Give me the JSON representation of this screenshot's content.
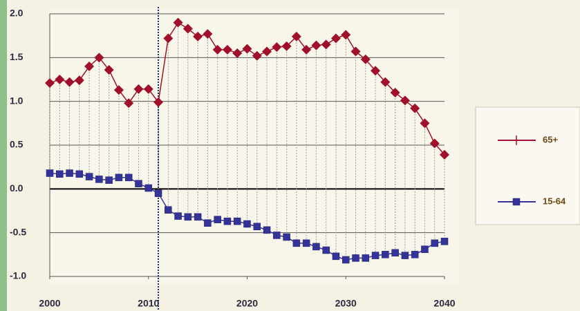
{
  "chart_data": {
    "type": "line",
    "x": [
      2000,
      2001,
      2002,
      2003,
      2004,
      2005,
      2006,
      2007,
      2008,
      2009,
      2010,
      2011,
      2012,
      2013,
      2014,
      2015,
      2016,
      2017,
      2018,
      2019,
      2020,
      2021,
      2022,
      2023,
      2024,
      2025,
      2026,
      2027,
      2028,
      2029,
      2030,
      2031,
      2032,
      2033,
      2034,
      2035,
      2036,
      2037,
      2038,
      2039,
      2040
    ],
    "series": [
      {
        "name": "65+",
        "color": "#a0102a",
        "marker": "diamond",
        "values": [
          1.21,
          1.25,
          1.22,
          1.24,
          1.4,
          1.5,
          1.36,
          1.13,
          0.98,
          1.14,
          1.14,
          0.99,
          1.72,
          1.9,
          1.83,
          1.74,
          1.77,
          1.59,
          1.59,
          1.55,
          1.6,
          1.52,
          1.57,
          1.62,
          1.63,
          1.74,
          1.59,
          1.64,
          1.65,
          1.72,
          1.76,
          1.57,
          1.48,
          1.35,
          1.22,
          1.1,
          1.01,
          0.92,
          0.75,
          0.52,
          0.39
        ]
      },
      {
        "name": "15-64",
        "color": "#333399",
        "marker": "square",
        "values": [
          0.18,
          0.17,
          0.18,
          0.17,
          0.14,
          0.11,
          0.1,
          0.13,
          0.13,
          0.06,
          0.01,
          -0.05,
          -0.24,
          -0.31,
          -0.32,
          -0.32,
          -0.39,
          -0.35,
          -0.37,
          -0.37,
          -0.4,
          -0.43,
          -0.47,
          -0.53,
          -0.55,
          -0.62,
          -0.62,
          -0.66,
          -0.7,
          -0.77,
          -0.81,
          -0.79,
          -0.79,
          -0.76,
          -0.75,
          -0.73,
          -0.76,
          -0.75,
          -0.69,
          -0.62,
          -0.6
        ]
      }
    ],
    "xlim": [
      2000,
      2040
    ],
    "xticks": [
      2000,
      2010,
      2020,
      2030,
      2040
    ],
    "ylim": [
      -1.0,
      2.0
    ],
    "yticks": [
      {
        "value": -1.0,
        "label": "-1.0"
      },
      {
        "value": -0.5,
        "label": "-0.5"
      },
      {
        "value": 0,
        "label": "0.0"
      },
      {
        "value": 0.5,
        "label": "0.5"
      },
      {
        "value": 1.0,
        "label": "1.0"
      },
      {
        "value": 1.5,
        "label": "1.5"
      },
      {
        "value": 2.0,
        "label": "2.0"
      }
    ],
    "grid": true,
    "drop_lines": true,
    "vline": 2011,
    "legend": "right"
  }
}
